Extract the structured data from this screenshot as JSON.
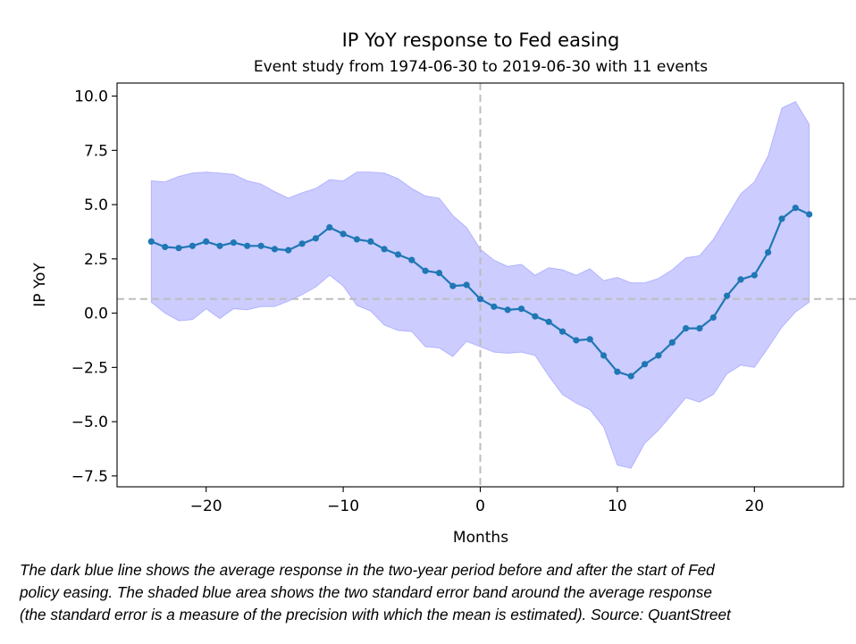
{
  "chart_data": {
    "type": "line",
    "title": "IP YoY response to Fed easing",
    "subtitle": "Event study from 1974-06-30 to 2019-06-30 with 11 events",
    "xlabel": "Months",
    "ylabel": "IP YoY",
    "xlim": [
      -26.5,
      26.5
    ],
    "ylim": [
      -8.0,
      10.6
    ],
    "x_ticks": [
      -20,
      -10,
      0,
      10,
      20
    ],
    "x_tick_labels": [
      "−20",
      "−10",
      "0",
      "10",
      "20"
    ],
    "y_ticks": [
      10.0,
      7.5,
      5.0,
      2.5,
      0.0,
      -2.5,
      -5.0,
      -7.5
    ],
    "y_tick_labels": [
      "10.0",
      "7.5",
      "5.0",
      "2.5",
      "0.0",
      "−2.5",
      "−5.0",
      "−7.5"
    ],
    "grid": false,
    "x": [
      -24,
      -23,
      -22,
      -21,
      -20,
      -19,
      -18,
      -17,
      -16,
      -15,
      -14,
      -13,
      -12,
      -11,
      -10,
      -9,
      -8,
      -7,
      -6,
      -5,
      -4,
      -3,
      -2,
      -1,
      0,
      1,
      2,
      3,
      4,
      5,
      6,
      7,
      8,
      9,
      10,
      11,
      12,
      13,
      14,
      15,
      16,
      17,
      18,
      19,
      20,
      21,
      22,
      23,
      24
    ],
    "series": [
      {
        "values": [
          3.3,
          3.05,
          3.0,
          3.1,
          3.3,
          3.1,
          3.25,
          3.1,
          3.1,
          2.95,
          2.9,
          3.2,
          3.45,
          3.95,
          3.65,
          3.4,
          3.3,
          2.95,
          2.7,
          2.45,
          1.95,
          1.85,
          1.25,
          1.3,
          0.65,
          0.3,
          0.15,
          0.2,
          -0.15,
          -0.4,
          -0.85,
          -1.25,
          -1.2,
          -1.95,
          -2.7,
          -2.9,
          -2.35,
          -1.95,
          -1.35,
          -0.7,
          -0.7,
          -0.2,
          0.8,
          1.55,
          1.75,
          2.8,
          4.35,
          4.85,
          4.55
        ],
        "color": "#1f77b4"
      }
    ],
    "band": {
      "upper": [
        6.1,
        6.05,
        6.3,
        6.45,
        6.5,
        6.45,
        6.4,
        6.1,
        5.95,
        5.6,
        5.3,
        5.55,
        5.75,
        6.15,
        6.1,
        6.5,
        6.5,
        6.45,
        6.2,
        5.75,
        5.4,
        5.3,
        4.5,
        3.95,
        2.95,
        2.45,
        2.15,
        2.25,
        1.75,
        2.1,
        2.0,
        1.75,
        2.05,
        1.5,
        1.65,
        1.4,
        1.4,
        1.6,
        2.0,
        2.55,
        2.65,
        3.4,
        4.45,
        5.5,
        6.05,
        7.25,
        9.45,
        9.75,
        8.7
      ],
      "lower": [
        0.5,
        0.0,
        -0.35,
        -0.3,
        0.2,
        -0.25,
        0.2,
        0.15,
        0.3,
        0.3,
        0.55,
        0.85,
        1.2,
        1.75,
        1.25,
        0.35,
        0.1,
        -0.55,
        -0.8,
        -0.85,
        -1.55,
        -1.6,
        -2.0,
        -1.3,
        -1.55,
        -1.8,
        -1.85,
        -1.8,
        -1.95,
        -2.9,
        -3.75,
        -4.15,
        -4.45,
        -5.25,
        -7.0,
        -7.15,
        -6.0,
        -5.4,
        -4.65,
        -3.9,
        -4.1,
        -3.75,
        -2.8,
        -2.4,
        -2.5,
        -1.6,
        -0.65,
        0.05,
        0.5
      ],
      "color": "#0000ff"
    },
    "reference_lines": {
      "vertical_x": 0,
      "horizontal_y": 0.65
    }
  },
  "caption": {
    "lines": [
      "The dark blue line shows the average response in the two-year period before and after the start of Fed",
      "policy easing. The shaded blue area shows the two standard error band around the average response",
      "(the standard error is a measure of the precision with which the mean is estimated). Source: QuantStreet"
    ]
  }
}
